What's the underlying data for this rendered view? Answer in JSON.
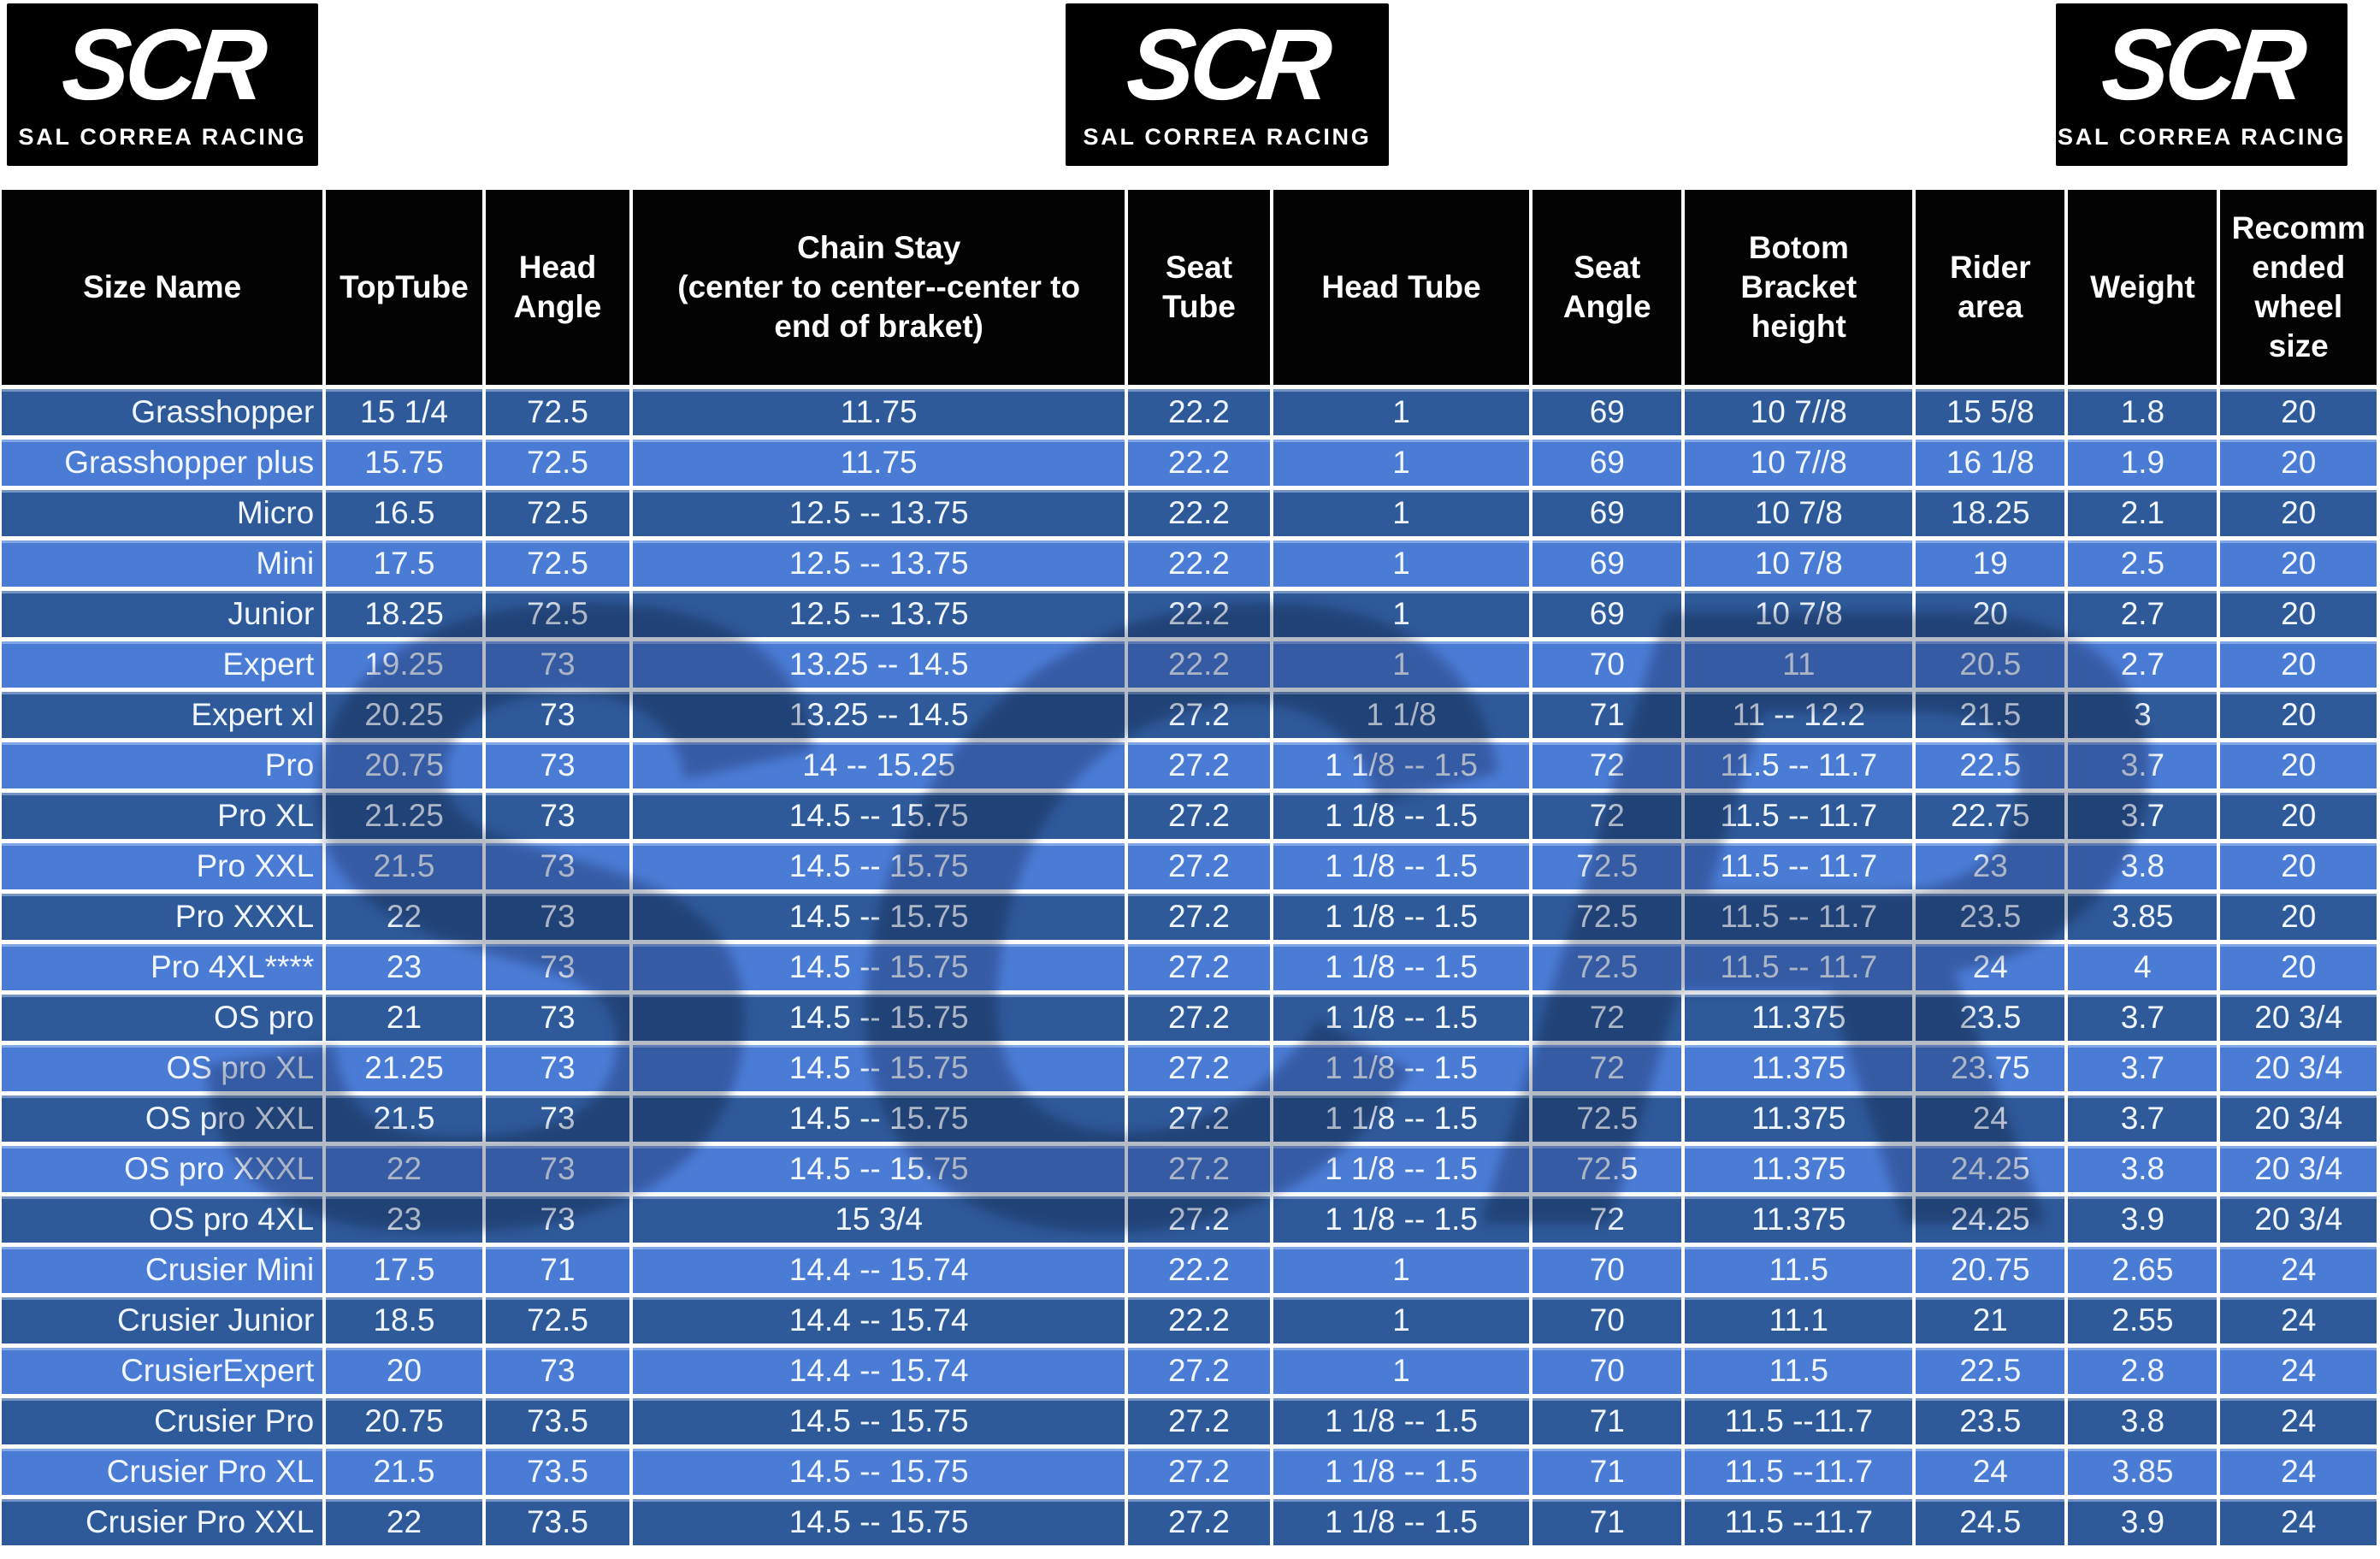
{
  "brand": {
    "logo_text": "SCR",
    "logo_subtext": "SAL CORREA RACING",
    "watermark_text": "SCR"
  },
  "colors": {
    "row_dark": "#2e5a9a",
    "row_light": "#4a7cd6",
    "header_bg": "#030303",
    "grid": "#ffffff",
    "text": "#f2f7ff"
  },
  "chart_data": {
    "type": "table",
    "title": "",
    "columns": [
      "Size Name",
      "TopTube",
      "Head\nAngle",
      "Chain Stay\n(center to center--center to\nend of braket)",
      "Seat\nTube",
      "Head Tube",
      "Seat\nAngle",
      "Botom\nBracket\nheight",
      "Rider\narea",
      "Weight",
      "Recomm\nended\nwheel\nsize"
    ],
    "rows": [
      [
        "Grasshopper",
        "15 1/4",
        "72.5",
        "11.75",
        "22.2",
        "1",
        "69",
        "10 7//8",
        "15 5/8",
        "1.8",
        "20"
      ],
      [
        "Grasshopper plus",
        "15.75",
        "72.5",
        "11.75",
        "22.2",
        "1",
        "69",
        "10 7//8",
        "16 1/8",
        "1.9",
        "20"
      ],
      [
        "Micro",
        "16.5",
        "72.5",
        "12.5 -- 13.75",
        "22.2",
        "1",
        "69",
        "10 7/8",
        "18.25",
        "2.1",
        "20"
      ],
      [
        "Mini",
        "17.5",
        "72.5",
        "12.5 -- 13.75",
        "22.2",
        "1",
        "69",
        "10 7/8",
        "19",
        "2.5",
        "20"
      ],
      [
        "Junior",
        "18.25",
        "72.5",
        "12.5 -- 13.75",
        "22.2",
        "1",
        "69",
        "10 7/8",
        "20",
        "2.7",
        "20"
      ],
      [
        "Expert",
        "19.25",
        "73",
        "13.25 -- 14.5",
        "22.2",
        "1",
        "70",
        "11",
        "20.5",
        "2.7",
        "20"
      ],
      [
        "Expert xl",
        "20.25",
        "73",
        "13.25 -- 14.5",
        "27.2",
        "1 1/8",
        "71",
        "11 -- 12.2",
        "21.5",
        "3",
        "20"
      ],
      [
        "Pro",
        "20.75",
        "73",
        "14 -- 15.25",
        "27.2",
        "1 1/8 -- 1.5",
        "72",
        "11.5 -- 11.7",
        "22.5",
        "3.7",
        "20"
      ],
      [
        "Pro XL",
        "21.25",
        "73",
        "14.5 -- 15.75",
        "27.2",
        "1 1/8 -- 1.5",
        "72",
        "11.5 -- 11.7",
        "22.75",
        "3.7",
        "20"
      ],
      [
        "Pro XXL",
        "21.5",
        "73",
        "14.5 -- 15.75",
        "27.2",
        "1 1/8 -- 1.5",
        "72.5",
        "11.5 -- 11.7",
        "23",
        "3.8",
        "20"
      ],
      [
        "Pro XXXL",
        "22",
        "73",
        "14.5 -- 15.75",
        "27.2",
        "1 1/8 -- 1.5",
        "72.5",
        "11.5 -- 11.7",
        "23.5",
        "3.85",
        "20"
      ],
      [
        "Pro 4XL****",
        "23",
        "73",
        "14.5 -- 15.75",
        "27.2",
        "1 1/8 -- 1.5",
        "72.5",
        "11.5 -- 11.7",
        "24",
        "4",
        "20"
      ],
      [
        "OS pro",
        "21",
        "73",
        "14.5 -- 15.75",
        "27.2",
        "1 1/8 -- 1.5",
        "72",
        "11.375",
        "23.5",
        "3.7",
        "20 3/4"
      ],
      [
        "OS pro XL",
        "21.25",
        "73",
        "14.5 -- 15.75",
        "27.2",
        "1 1/8 -- 1.5",
        "72",
        "11.375",
        "23.75",
        "3.7",
        "20 3/4"
      ],
      [
        "OS pro XXL",
        "21.5",
        "73",
        "14.5 -- 15.75",
        "27.2",
        "1 1/8 -- 1.5",
        "72.5",
        "11.375",
        "24",
        "3.7",
        "20 3/4"
      ],
      [
        "OS pro XXXL",
        "22",
        "73",
        "14.5 -- 15.75",
        "27.2",
        "1 1/8 -- 1.5",
        "72.5",
        "11.375",
        "24.25",
        "3.8",
        "20 3/4"
      ],
      [
        "OS pro 4XL",
        "23",
        "73",
        "15 3/4",
        "27.2",
        "1 1/8 -- 1.5",
        "72",
        "11.375",
        "24.25",
        "3.9",
        "20 3/4"
      ],
      [
        "Crusier Mini",
        "17.5",
        "71",
        "14.4 -- 15.74",
        "22.2",
        "1",
        "70",
        "11.5",
        "20.75",
        "2.65",
        "24"
      ],
      [
        "Crusier Junior",
        "18.5",
        "72.5",
        "14.4 -- 15.74",
        "22.2",
        "1",
        "70",
        "11.1",
        "21",
        "2.55",
        "24"
      ],
      [
        "CrusierExpert",
        "20",
        "73",
        "14.4 -- 15.74",
        "27.2",
        "1",
        "70",
        "11.5",
        "22.5",
        "2.8",
        "24"
      ],
      [
        "Crusier Pro",
        "20.75",
        "73.5",
        "14.5 -- 15.75",
        "27.2",
        "1 1/8 -- 1.5",
        "71",
        "11.5 --11.7",
        "23.5",
        "3.8",
        "24"
      ],
      [
        "Crusier Pro XL",
        "21.5",
        "73.5",
        "14.5 -- 15.75",
        "27.2",
        "1 1/8 -- 1.5",
        "71",
        "11.5 --11.7",
        "24",
        "3.85",
        "24"
      ],
      [
        "Crusier Pro XXL",
        "22",
        "73.5",
        "14.5 -- 15.75",
        "27.2",
        "1 1/8 -- 1.5",
        "71",
        "11.5 --11.7",
        "24.5",
        "3.9",
        "24"
      ]
    ]
  }
}
